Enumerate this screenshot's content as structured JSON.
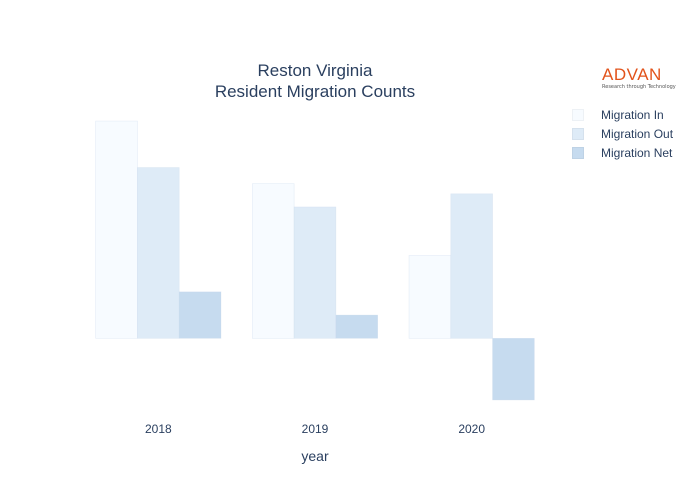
{
  "brand": {
    "name": "ADVAN",
    "tagline": "Research through Technology"
  },
  "chart_data": {
    "type": "bar",
    "title": [
      "Reston Virginia",
      "Resident Migration Counts"
    ],
    "xlabel": "year",
    "ylabel": "",
    "categories": [
      "2018",
      "2019",
      "2020"
    ],
    "series": [
      {
        "name": "Migration In",
        "color": "#f7fbff",
        "values": [
          2150,
          1530,
          820
        ]
      },
      {
        "name": "Migration Out",
        "color": "#deebf7",
        "values": [
          1690,
          1300,
          1430
        ]
      },
      {
        "name": "Migration Net",
        "color": "#c6dbef",
        "values": [
          460,
          230,
          -610
        ]
      }
    ],
    "ylim": [
      -650,
      2200
    ],
    "y_ticks_shown": false,
    "grid": false,
    "legend_position": "top-right"
  }
}
